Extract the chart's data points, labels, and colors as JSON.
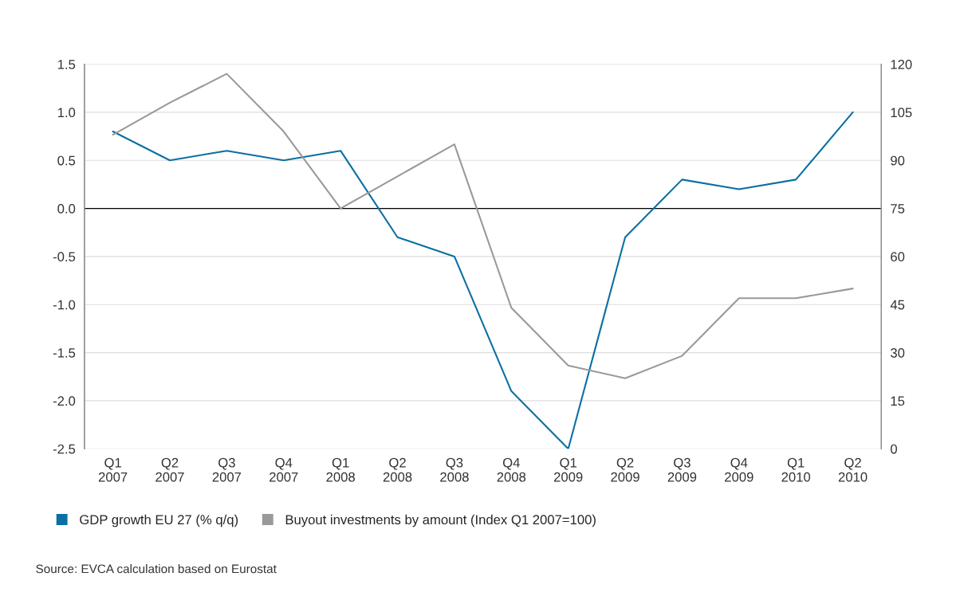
{
  "chart_data": {
    "type": "line",
    "categories": [
      "Q1\n2007",
      "Q2\n2007",
      "Q3\n2007",
      "Q4\n2007",
      "Q1\n2008",
      "Q2\n2008",
      "Q3\n2008",
      "Q4\n2008",
      "Q1\n2009",
      "Q2\n2009",
      "Q3\n2009",
      "Q4\n2009",
      "Q1\n2010",
      "Q2\n2010"
    ],
    "series": [
      {
        "name": "GDP growth EU 27 (% q/q)",
        "color": "#0a6fa3",
        "values": [
          0.8,
          0.5,
          0.6,
          0.5,
          0.6,
          -0.3,
          -0.5,
          -1.9,
          -2.5,
          -0.3,
          0.3,
          0.2,
          0.3,
          1.0
        ]
      },
      {
        "name": "Buyout investments by amount (Index Q1 2007=100)",
        "color": "#999999",
        "axis": "y2",
        "values": [
          98,
          108,
          117,
          99,
          75,
          85,
          95,
          44,
          26,
          22,
          29,
          47,
          47,
          50
        ]
      }
    ],
    "ylim": [
      -2.5,
      1.5
    ],
    "yticks": [
      {
        "value": -2.5,
        "label": "-2.5"
      },
      {
        "value": -2.0,
        "label": "-2.0"
      },
      {
        "value": -1.5,
        "label": "-1.5"
      },
      {
        "value": -1.0,
        "label": "-1.0"
      },
      {
        "value": -0.5,
        "label": "-0.5"
      },
      {
        "value": 0.0,
        "label": "0.0"
      },
      {
        "value": 0.5,
        "label": "0.5"
      },
      {
        "value": 1.0,
        "label": "1.0"
      },
      {
        "value": 1.5,
        "label": "1.5"
      }
    ],
    "y2lim": [
      0,
      120
    ],
    "y2ticks": [
      0,
      15,
      30,
      45,
      60,
      75,
      90,
      105,
      120
    ],
    "ref_lines": [
      {
        "axis": "y",
        "value": 0,
        "color": "#000000"
      }
    ],
    "grid": "y",
    "legend": "bottom",
    "annotations": [
      "Source: EVCA calculation based on Eurostat"
    ]
  }
}
